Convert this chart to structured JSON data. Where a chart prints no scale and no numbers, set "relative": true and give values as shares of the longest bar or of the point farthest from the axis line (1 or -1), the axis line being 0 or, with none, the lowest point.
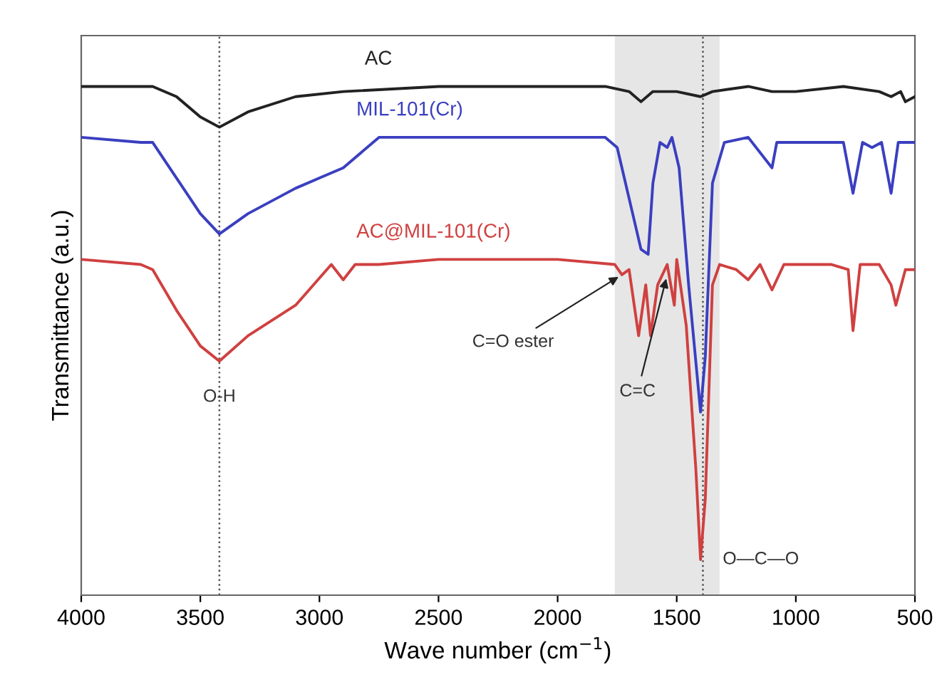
{
  "chart_data": {
    "type": "line",
    "relative": true,
    "xlabel": "Wave number (cm$^{−1}$)",
    "ylabel": "Transmittance (a.u.)",
    "xlim": [
      4000,
      500
    ],
    "xticks": [
      4000,
      3500,
      3000,
      2500,
      2000,
      1500,
      1000,
      500
    ],
    "grid": false,
    "legend": false,
    "marker": "none",
    "line_style": "solid",
    "series": [
      {
        "name": "AC",
        "color": "#222222",
        "x": [
          4000,
          3800,
          3700,
          3600,
          3500,
          3420,
          3300,
          3100,
          2900,
          2500,
          2000,
          1800,
          1700,
          1650,
          1600,
          1500,
          1400,
          1350,
          1200,
          1100,
          1000,
          800,
          650,
          600,
          560,
          540,
          500
        ],
        "values": [
          1.0,
          1.0,
          1.0,
          0.98,
          0.94,
          0.92,
          0.95,
          0.98,
          0.99,
          1.0,
          1.0,
          1.0,
          0.99,
          0.97,
          0.99,
          0.99,
          0.98,
          0.99,
          1.0,
          0.99,
          0.99,
          1.0,
          0.99,
          0.98,
          0.99,
          0.97,
          0.98
        ]
      },
      {
        "name": "MIL-101(Cr)",
        "color": "#3a3fc0",
        "x": [
          4000,
          3750,
          3700,
          3600,
          3500,
          3420,
          3300,
          3100,
          3000,
          2900,
          2750,
          2500,
          2000,
          1800,
          1750,
          1700,
          1650,
          1620,
          1600,
          1570,
          1540,
          1520,
          1490,
          1450,
          1400,
          1380,
          1350,
          1300,
          1200,
          1100,
          1080,
          1000,
          900,
          800,
          760,
          720,
          680,
          640,
          600,
          570,
          500
        ],
        "values": [
          0.9,
          0.89,
          0.89,
          0.82,
          0.75,
          0.71,
          0.75,
          0.8,
          0.82,
          0.84,
          0.9,
          0.9,
          0.9,
          0.9,
          0.88,
          0.78,
          0.68,
          0.67,
          0.81,
          0.89,
          0.88,
          0.9,
          0.84,
          0.61,
          0.36,
          0.47,
          0.81,
          0.89,
          0.9,
          0.84,
          0.89,
          0.89,
          0.89,
          0.89,
          0.79,
          0.89,
          0.88,
          0.89,
          0.79,
          0.89,
          0.89
        ]
      },
      {
        "name": "AC@MIL-101(Cr)",
        "color": "#d04040",
        "x": [
          4000,
          3750,
          3700,
          3600,
          3500,
          3420,
          3300,
          3100,
          2950,
          2900,
          2850,
          2750,
          2500,
          2000,
          1760,
          1730,
          1700,
          1660,
          1630,
          1610,
          1580,
          1540,
          1510,
          1500,
          1460,
          1420,
          1400,
          1380,
          1350,
          1320,
          1250,
          1200,
          1150,
          1100,
          1050,
          1000,
          850,
          780,
          760,
          730,
          650,
          600,
          580,
          540,
          500
        ],
        "values": [
          0.66,
          0.65,
          0.64,
          0.56,
          0.49,
          0.46,
          0.51,
          0.57,
          0.65,
          0.62,
          0.65,
          0.65,
          0.66,
          0.66,
          0.65,
          0.63,
          0.64,
          0.51,
          0.61,
          0.51,
          0.61,
          0.65,
          0.57,
          0.66,
          0.53,
          0.25,
          0.07,
          0.19,
          0.61,
          0.65,
          0.64,
          0.62,
          0.65,
          0.6,
          0.65,
          0.65,
          0.65,
          0.64,
          0.52,
          0.65,
          0.65,
          0.61,
          0.57,
          0.64,
          0.64
        ]
      }
    ],
    "ref_lines": [
      {
        "axis": "x",
        "value": 3420,
        "color": "#555555",
        "line_style": "dotted"
      },
      {
        "axis": "x",
        "value": 1390,
        "color": "#555555",
        "line_style": "dotted"
      }
    ],
    "bands": [
      {
        "axis": "x",
        "from": 1760,
        "to": 1320,
        "color": "#e6e6e6"
      }
    ],
    "annotations": [
      {
        "text": "O-H",
        "x": 3420,
        "y": 0.46
      },
      {
        "text": "C=O ester",
        "x": 1730,
        "y": 0.63
      },
      {
        "text": "C=C",
        "x": 1540,
        "y": 0.63
      },
      {
        "text": "O—C—O",
        "x": 1390,
        "y": 0.07
      }
    ]
  }
}
